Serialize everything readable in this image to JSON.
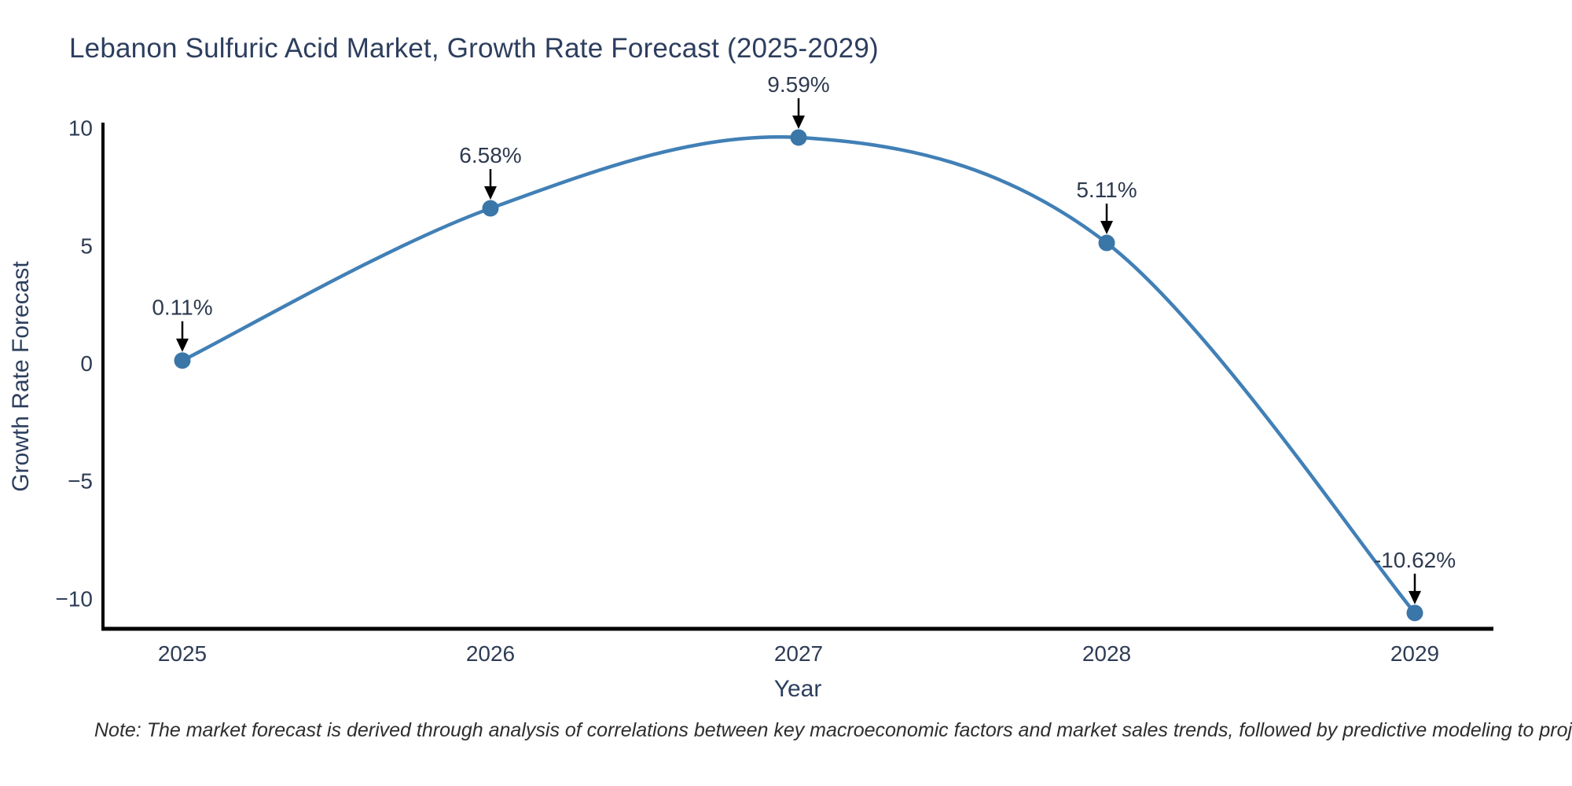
{
  "title": "Lebanon Sulfuric Acid Market, Growth Rate Forecast (2025-2029)",
  "note": "Note: The market forecast is derived through analysis of correlations between key macroeconomic factors and market sales trends, followed by predictive modeling to project future sales",
  "chart_data": {
    "type": "line",
    "title": "Lebanon Sulfuric Acid Market, Growth Rate Forecast (2025-2029)",
    "xlabel": "Year",
    "ylabel": "Growth Rate Forecast",
    "categories": [
      "2025",
      "2026",
      "2027",
      "2028",
      "2029"
    ],
    "values": [
      0.11,
      6.58,
      9.59,
      5.11,
      -10.62
    ],
    "point_labels": [
      "0.11%",
      "6.58%",
      "9.59%",
      "5.11%",
      "-10.62%"
    ],
    "yticks": {
      "values": [
        10,
        5,
        0,
        -5,
        -10
      ],
      "labels": [
        "10",
        "5",
        "0",
        "−5",
        "−10"
      ]
    },
    "ylim": [
      -11.3,
      10.2
    ],
    "grid": false,
    "legend": "none",
    "line_color": "#4180b6",
    "marker_color": "#3a76a8",
    "axis_color": "#000000",
    "annotation_arrow_color": "#000000",
    "text_color": "#2d3e5e"
  }
}
